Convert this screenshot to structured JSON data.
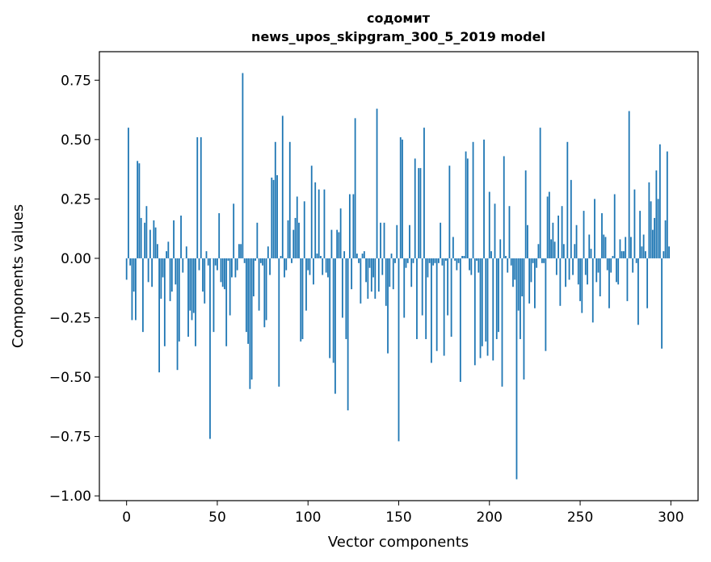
{
  "chart_data": {
    "type": "bar",
    "title": "содомит",
    "subtitle": "news_upos_skipgram_300_5_2019 model",
    "xlabel": "Vector components",
    "ylabel": "Components values",
    "xlim": [
      -15,
      315
    ],
    "ylim": [
      -1.02,
      0.87
    ],
    "xticks": [
      0,
      50,
      100,
      150,
      200,
      250,
      300
    ],
    "yticks": [
      -1.0,
      -0.75,
      -0.5,
      -0.25,
      0.0,
      0.25,
      0.5,
      0.75
    ],
    "ytick_labels": [
      "−1.00",
      "−0.75",
      "−0.50",
      "−0.25",
      "0.00",
      "0.25",
      "0.50",
      "0.75"
    ],
    "color": "#1f77b4",
    "grid": false,
    "values": [
      -0.09,
      0.55,
      -0.03,
      -0.26,
      -0.14,
      -0.26,
      0.41,
      0.4,
      0.17,
      -0.31,
      0.15,
      0.22,
      -0.1,
      0.12,
      -0.12,
      0.16,
      0.13,
      0.06,
      -0.48,
      -0.17,
      -0.08,
      -0.37,
      0.03,
      0.07,
      -0.18,
      -0.14,
      0.16,
      -0.11,
      -0.47,
      -0.35,
      0.18,
      -0.06,
      0.0,
      0.05,
      -0.33,
      -0.22,
      -0.26,
      -0.23,
      -0.37,
      0.51,
      -0.05,
      0.51,
      -0.14,
      -0.19,
      0.03,
      -0.03,
      -0.76,
      0.0,
      -0.31,
      -0.03,
      -0.05,
      0.19,
      -0.1,
      -0.12,
      -0.13,
      -0.37,
      -0.01,
      -0.24,
      -0.08,
      0.23,
      -0.08,
      -0.05,
      0.06,
      0.06,
      0.78,
      -0.02,
      -0.31,
      -0.36,
      -0.55,
      -0.51,
      -0.16,
      -0.01,
      0.15,
      -0.22,
      -0.02,
      -0.03,
      -0.29,
      -0.26,
      0.05,
      -0.07,
      0.34,
      0.33,
      0.49,
      0.35,
      -0.54,
      0.01,
      0.6,
      -0.08,
      -0.05,
      0.16,
      0.49,
      -0.02,
      0.12,
      0.17,
      0.26,
      0.15,
      -0.35,
      -0.34,
      0.24,
      -0.22,
      -0.05,
      -0.07,
      0.39,
      -0.11,
      0.32,
      0.02,
      0.29,
      0.01,
      -0.07,
      0.29,
      -0.06,
      -0.08,
      -0.42,
      0.12,
      -0.44,
      -0.57,
      0.12,
      0.11,
      0.21,
      -0.25,
      0.03,
      -0.34,
      -0.64,
      0.27,
      -0.13,
      0.27,
      0.59,
      0.02,
      -0.02,
      -0.19,
      0.02,
      0.03,
      -0.1,
      -0.17,
      -0.04,
      -0.14,
      -0.08,
      -0.17,
      0.63,
      -0.14,
      0.15,
      -0.07,
      0.15,
      -0.2,
      -0.4,
      -0.12,
      0.02,
      -0.13,
      -0.02,
      0.14,
      -0.77,
      0.51,
      0.5,
      -0.25,
      -0.04,
      -0.02,
      0.14,
      -0.12,
      -0.02,
      0.42,
      -0.34,
      0.38,
      0.38,
      -0.24,
      0.55,
      -0.34,
      -0.08,
      -0.02,
      -0.44,
      -0.03,
      -0.02,
      -0.39,
      -0.02,
      0.15,
      -0.03,
      -0.41,
      -0.01,
      -0.24,
      0.39,
      -0.33,
      0.09,
      -0.01,
      -0.05,
      -0.02,
      -0.52,
      0.01,
      0.01,
      0.45,
      0.42,
      -0.05,
      -0.07,
      0.49,
      -0.45,
      -0.01,
      -0.06,
      -0.42,
      -0.37,
      0.5,
      -0.35,
      -0.41,
      0.28,
      0.03,
      -0.43,
      0.23,
      -0.34,
      -0.31,
      0.08,
      -0.54,
      0.43,
      0.01,
      -0.06,
      0.22,
      -0.03,
      -0.12,
      -0.09,
      -0.93,
      -0.22,
      -0.34,
      -0.16,
      -0.51,
      0.37,
      0.14,
      -0.19,
      -0.1,
      -0.02,
      -0.21,
      -0.04,
      0.06,
      0.55,
      -0.02,
      -0.02,
      -0.39,
      0.26,
      0.28,
      0.08,
      0.15,
      0.07,
      -0.07,
      0.18,
      -0.2,
      0.22,
      0.06,
      -0.12,
      0.49,
      -0.09,
      0.33,
      -0.07,
      0.06,
      0.14,
      -0.11,
      -0.18,
      -0.23,
      0.2,
      -0.07,
      -0.11,
      0.1,
      0.04,
      -0.27,
      0.25,
      -0.1,
      -0.06,
      -0.16,
      0.19,
      0.1,
      0.09,
      -0.05,
      -0.21,
      -0.06,
      0.01,
      0.27,
      -0.1,
      -0.11,
      0.08,
      0.03,
      0.03,
      0.09,
      -0.18,
      0.62,
      0.09,
      -0.06,
      0.29,
      -0.02,
      -0.28,
      0.2,
      0.05,
      0.1,
      0.03,
      -0.21,
      0.32,
      0.24,
      0.12,
      0.17,
      0.37,
      0.25,
      0.48,
      -0.38,
      0.03,
      0.16,
      0.45,
      0.05
    ]
  }
}
